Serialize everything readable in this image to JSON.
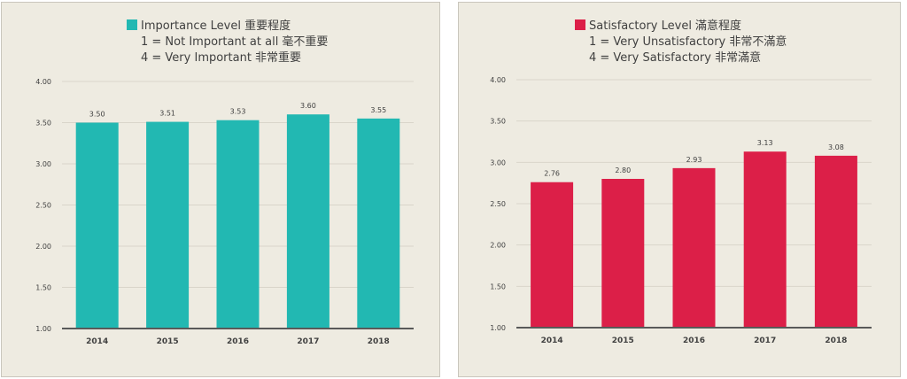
{
  "chart_data": [
    {
      "type": "bar",
      "legend_lines": [
        "Importance Level 重要程度",
        "1 = Not Important at all 毫不重要",
        "4 = Very Important 非常重要"
      ],
      "color": "#22b8b2",
      "categories": [
        "2014",
        "2015",
        "2016",
        "2017",
        "2018"
      ],
      "values": [
        3.5,
        3.51,
        3.53,
        3.6,
        3.55
      ],
      "data_labels": [
        "3.50",
        "3.51",
        "3.53",
        "3.60",
        "3.55"
      ],
      "yticks": [
        "1.00",
        "1.50",
        "2.00",
        "2.50",
        "3.00",
        "3.50",
        "4.00"
      ],
      "ylim": [
        1,
        4
      ],
      "grid": true,
      "legend_position": "top-center"
    },
    {
      "type": "bar",
      "legend_lines": [
        "Satisfactory Level 滿意程度",
        "1 = Very Unsatisfactory 非常不滿意",
        "4 = Very Satisfactory 非常滿意"
      ],
      "color": "#dc1f48",
      "categories": [
        "2014",
        "2015",
        "2016",
        "2017",
        "2018"
      ],
      "values": [
        2.76,
        2.8,
        2.93,
        3.13,
        3.08
      ],
      "data_labels": [
        "2.76",
        "2.80",
        "2.93",
        "3.13",
        "3.08"
      ],
      "yticks": [
        "1.00",
        "1.50",
        "2.00",
        "2.50",
        "3.00",
        "3.50",
        "4.00"
      ],
      "ylim": [
        1,
        4
      ],
      "grid": true,
      "legend_position": "top-center"
    }
  ]
}
